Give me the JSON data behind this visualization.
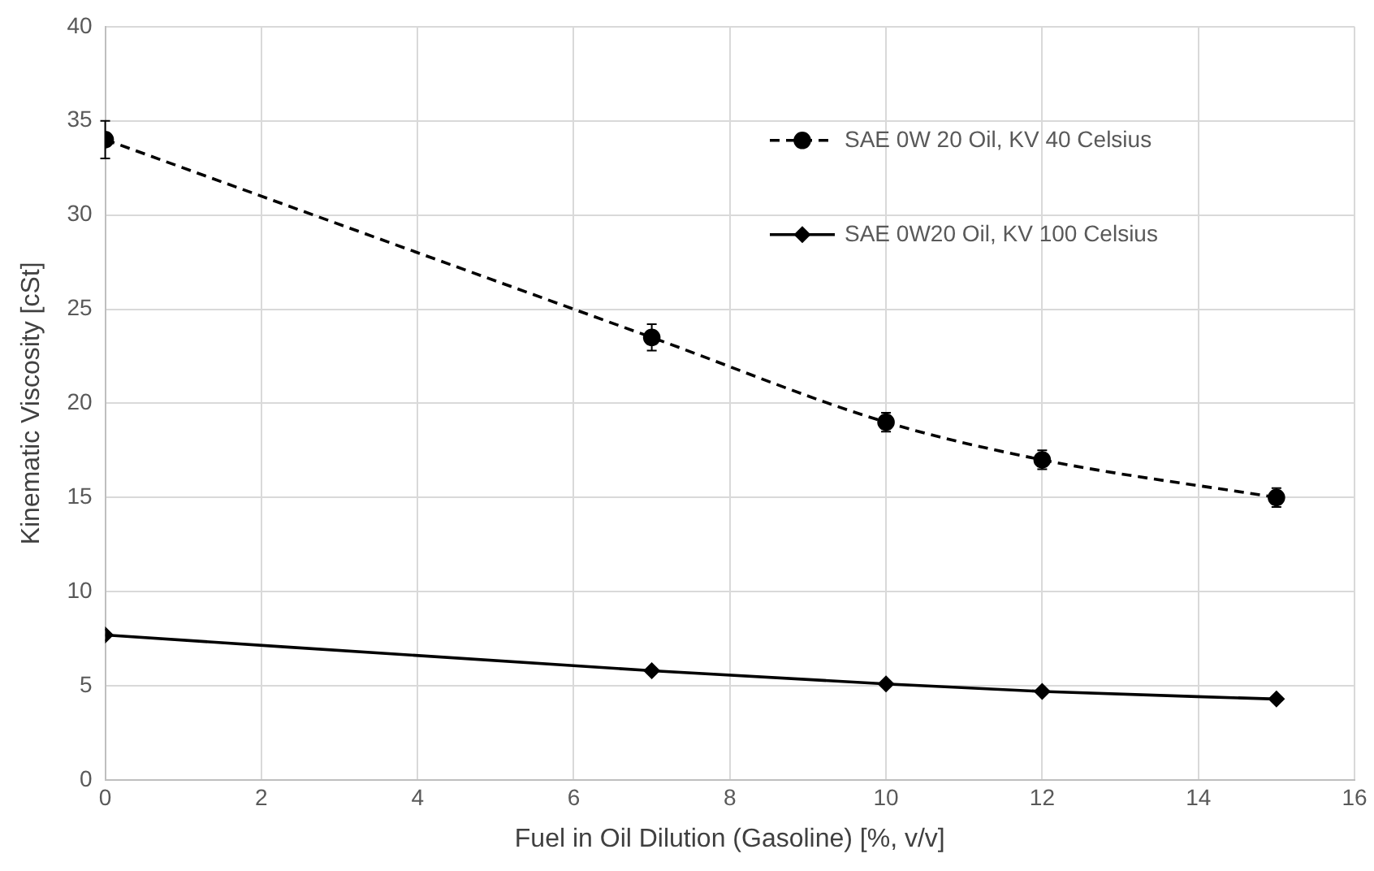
{
  "chart_data": {
    "type": "line",
    "xlabel": "Fuel in Oil Dilution (Gasoline) [%, v/v]",
    "ylabel": "Kinematic Viscosity [cSt]",
    "x": [
      0,
      7,
      10,
      12,
      15
    ],
    "series": [
      {
        "name": "SAE 0W 20 Oil, KV 40 Celsius",
        "color": "#000000",
        "values": [
          34,
          23.5,
          19,
          17,
          15
        ],
        "errors": [
          1,
          0.7,
          0.5,
          0.5,
          0.5
        ],
        "marker": "circle",
        "line_style": "dashed"
      },
      {
        "name": "SAE 0W20 Oil, KV 100 Celsius",
        "color": "#000000",
        "values": [
          7.7,
          5.8,
          5.1,
          4.7,
          4.3
        ],
        "marker": "diamond",
        "line_style": "solid"
      }
    ],
    "xlim": [
      0,
      16
    ],
    "xticks": [
      0,
      2,
      4,
      6,
      8,
      10,
      12,
      14,
      16
    ],
    "ylim": [
      0,
      40
    ],
    "yticks": [
      0,
      5,
      10,
      15,
      20,
      25,
      30,
      35,
      40
    ],
    "grid": true,
    "legend": "top right"
  }
}
